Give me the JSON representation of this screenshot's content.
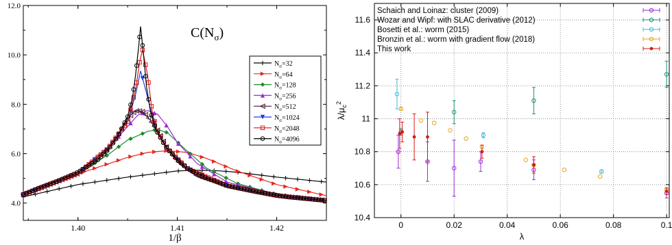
{
  "chart_data": [
    {
      "type": "line",
      "title": "C(N_σ)",
      "xlabel": "1/β",
      "ylabel": "",
      "xlim": [
        1.3945,
        1.425
      ],
      "ylim": [
        3.3,
        12.0
      ],
      "xticks": [
        "1.40",
        "1.41",
        "1.42"
      ],
      "yticks": [
        "4.0",
        "6.0",
        "8.0",
        "10.0",
        "12.0"
      ],
      "grid": false,
      "legend_position": "right",
      "series": [
        {
          "name": "N_σ=32",
          "color": "#000000",
          "marker": "plus",
          "x": [
            1.3945,
            1.4,
            1.405,
            1.408,
            1.41,
            1.412,
            1.414,
            1.416,
            1.418,
            1.42,
            1.425
          ],
          "y": [
            4.25,
            4.75,
            5.05,
            5.2,
            5.3,
            5.33,
            5.31,
            5.25,
            5.15,
            5.05,
            4.85
          ]
        },
        {
          "name": "N_σ=64",
          "color": "#e8261e",
          "marker": "triangle-right",
          "x": [
            1.3945,
            1.398,
            1.402,
            1.405,
            1.407,
            1.409,
            1.411,
            1.413,
            1.416,
            1.42,
            1.425
          ],
          "y": [
            4.35,
            4.9,
            5.45,
            5.85,
            6.05,
            6.12,
            6.05,
            5.8,
            5.3,
            4.75,
            4.3
          ]
        },
        {
          "name": "N_σ=128",
          "color": "#1c8c2e",
          "marker": "diamond",
          "x": [
            1.3945,
            1.398,
            1.401,
            1.403,
            1.405,
            1.407,
            1.408,
            1.409,
            1.411,
            1.413,
            1.416,
            1.42,
            1.425
          ],
          "y": [
            4.35,
            4.9,
            5.45,
            5.95,
            6.55,
            6.9,
            6.98,
            6.85,
            6.1,
            5.4,
            4.8,
            4.35,
            4.1
          ]
        },
        {
          "name": "N_σ=256",
          "color": "#9a2bd6",
          "marker": "triangle-up",
          "x": [
            1.3945,
            1.4,
            1.403,
            1.405,
            1.406,
            1.407,
            1.408,
            1.409,
            1.41,
            1.412,
            1.415,
            1.42,
            1.425
          ],
          "y": [
            4.35,
            5.2,
            6.2,
            7.1,
            7.55,
            7.75,
            7.6,
            7.1,
            6.45,
            5.6,
            4.85,
            4.35,
            4.1
          ]
        },
        {
          "name": "N_σ=512",
          "color": "#4a1a33",
          "marker": "triangle-left",
          "x": [
            1.3945,
            1.4,
            1.403,
            1.404,
            1.405,
            1.4055,
            1.406,
            1.4065,
            1.407,
            1.408,
            1.409,
            1.41,
            1.412,
            1.415,
            1.42,
            1.425
          ],
          "y": [
            4.35,
            5.2,
            6.2,
            6.75,
            7.4,
            7.65,
            7.75,
            7.7,
            7.5,
            6.95,
            6.2,
            5.7,
            5.1,
            4.7,
            4.3,
            4.1
          ]
        },
        {
          "name": "N_σ=1024",
          "color": "#1a3fd9",
          "marker": "triangle-down",
          "x": [
            1.3945,
            1.4,
            1.403,
            1.405,
            1.4058,
            1.4063,
            1.4068,
            1.4075,
            1.408,
            1.409,
            1.411,
            1.415,
            1.42,
            1.425
          ],
          "y": [
            4.35,
            5.2,
            6.2,
            7.3,
            8.4,
            9.35,
            8.6,
            7.5,
            6.9,
            6.2,
            5.4,
            4.7,
            4.3,
            4.1
          ]
        },
        {
          "name": "N_σ=2048",
          "color": "#d81818",
          "marker": "square",
          "x": [
            1.3945,
            1.4,
            1.403,
            1.405,
            1.4058,
            1.4062,
            1.4065,
            1.407,
            1.4075,
            1.408,
            1.409,
            1.411,
            1.415,
            1.42,
            1.425
          ],
          "y": [
            4.35,
            5.2,
            6.2,
            7.3,
            8.6,
            9.7,
            10.2,
            9.2,
            7.6,
            6.9,
            6.2,
            5.4,
            4.7,
            4.3,
            4.1
          ]
        },
        {
          "name": "N_σ=4096",
          "color": "#000000",
          "marker": "circle",
          "x": [
            1.3945,
            1.396,
            1.398,
            1.4,
            1.402,
            1.403,
            1.404,
            1.405,
            1.4055,
            1.4058,
            1.4061,
            1.4063,
            1.4066,
            1.4069,
            1.4073,
            1.4078,
            1.4085,
            1.409,
            1.41,
            1.411,
            1.413,
            1.415,
            1.418,
            1.421,
            1.425
          ],
          "y": [
            4.35,
            4.6,
            4.9,
            5.25,
            5.75,
            6.15,
            6.7,
            7.5,
            8.3,
            9.2,
            10.3,
            11.15,
            10.0,
            8.7,
            7.7,
            7.0,
            6.5,
            6.2,
            5.75,
            5.4,
            5.0,
            4.7,
            4.45,
            4.25,
            4.1
          ]
        }
      ]
    },
    {
      "type": "scatter",
      "title": "",
      "xlabel": "λ",
      "ylabel": "λ/μ_c^2",
      "xlim": [
        -0.01,
        0.101
      ],
      "ylim": [
        10.4,
        11.7
      ],
      "xticks": [
        "0",
        "0.02",
        "0.04",
        "0.06",
        "0.08",
        "0.1"
      ],
      "yticks": [
        "10.4",
        "10.6",
        "10.8",
        "11",
        "11.2",
        "11.4",
        "11.6"
      ],
      "grid": true,
      "legend_position": "top-left",
      "series": [
        {
          "name": "Schaich and Loinaz: cluster (2009)",
          "color": "#9a2bd6",
          "marker": "circle-open",
          "points": [
            [
              -0.001,
              10.8,
              0.1
            ],
            [
              0.01,
              10.74,
              0.12
            ],
            [
              0.02,
              10.7,
              0.17
            ],
            [
              0.03,
              10.74,
              0.06
            ],
            [
              0.05,
              10.69,
              0.06
            ],
            [
              0.1,
              10.55,
              0.03
            ]
          ]
        },
        {
          "name": "Wozar and Wipf: with SLAC derivative (2012)",
          "color": "#1a8f77",
          "marker": "circle-open",
          "points": [
            [
              0.0,
              10.92,
              0.02
            ],
            [
              0.02,
              11.04,
              0.07
            ],
            [
              0.05,
              11.11,
              0.08
            ],
            [
              0.1,
              11.27,
              0.08
            ]
          ]
        },
        {
          "name": "Bosetti et al.: worm (2015)",
          "color": "#45b6dd",
          "marker": "circle-open",
          "points": [
            [
              -0.0015,
              11.15,
              0.09
            ],
            [
              0.031,
              10.9,
              0.015
            ],
            [
              0.0755,
              10.68,
              0.01
            ]
          ]
        },
        {
          "name": "Bronzin et al.: worm with gradient flow (2018)",
          "color": "#e8a21a",
          "marker": "circle-open",
          "points": [
            [
              0.0,
              11.06,
              0.01
            ],
            [
              0.0075,
              10.99,
              0.0
            ],
            [
              0.0125,
              10.975,
              0.0
            ],
            [
              0.0185,
              10.93,
              0.0
            ],
            [
              0.0245,
              10.88,
              0.0
            ],
            [
              0.0305,
              10.83,
              0.01
            ],
            [
              0.047,
              10.75,
              0.0
            ],
            [
              0.05,
              10.72,
              0.0
            ],
            [
              0.0615,
              10.69,
              0.0
            ],
            [
              0.075,
              10.65,
              0.0
            ],
            [
              0.1,
              10.57,
              0.0
            ]
          ]
        },
        {
          "name": "This work",
          "color": "#d81818",
          "marker": "filled-circle",
          "points": [
            [
              -0.0005,
              10.91,
              0.09
            ],
            [
              0.0005,
              10.92,
              0.06
            ],
            [
              0.005,
              10.89,
              0.14
            ],
            [
              0.01,
              10.89,
              0.15
            ],
            [
              0.0305,
              10.8,
              0.04
            ],
            [
              0.05,
              10.72,
              0.05
            ],
            [
              0.1,
              10.56,
              0.02
            ]
          ]
        }
      ]
    }
  ],
  "left_panel": {
    "title_main": "C(N",
    "title_sub": "σ",
    "title_close": ")",
    "xlabel": "1/β"
  }
}
